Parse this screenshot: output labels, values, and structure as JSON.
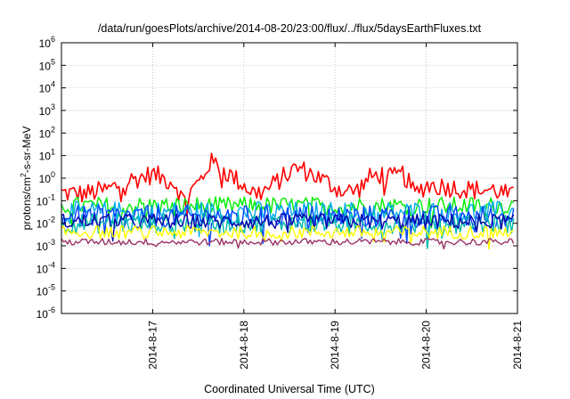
{
  "chart_data": {
    "type": "line",
    "title": "/data/run/goesPlots/archive/2014-08-20/23:00/flux/../flux/5daysEarthFluxes.txt",
    "xlabel": "Coordinated Universal Time (UTC)",
    "ylabel": "protons/cm2-s-sr-MeV",
    "ylabel_parts": {
      "before": "protons/cm",
      "sup": "2",
      "after": "-s-sr-MeV"
    },
    "y_scale": "log",
    "ylim": [
      1e-06,
      1000000.0
    ],
    "y_ticks": [
      {
        "value": 1e-06,
        "base": "10",
        "exp": "-6"
      },
      {
        "value": 1e-05,
        "base": "10",
        "exp": "-5"
      },
      {
        "value": 0.0001,
        "base": "10",
        "exp": "-4"
      },
      {
        "value": 0.001,
        "base": "10",
        "exp": "-3"
      },
      {
        "value": 0.01,
        "base": "10",
        "exp": "-2"
      },
      {
        "value": 0.1,
        "base": "10",
        "exp": "-1"
      },
      {
        "value": 1.0,
        "base": "10",
        "exp": "0"
      },
      {
        "value": 10.0,
        "base": "10",
        "exp": "1"
      },
      {
        "value": 100.0,
        "base": "10",
        "exp": "2"
      },
      {
        "value": 1000.0,
        "base": "10",
        "exp": "3"
      },
      {
        "value": 10000.0,
        "base": "10",
        "exp": "4"
      },
      {
        "value": 100000.0,
        "base": "10",
        "exp": "5"
      },
      {
        "value": 1000000.0,
        "base": "10",
        "exp": "6"
      }
    ],
    "xlim": [
      "2014-08-16",
      "2014-08-21"
    ],
    "x_ticks": [
      "2014-8-17",
      "2014-8-18",
      "2014-8-19",
      "2014-8-20",
      "2014-8-21"
    ],
    "grid": true,
    "series": [
      {
        "color": "#ff0000",
        "noise": 0.45,
        "points": [
          [
            "2014-08-16 00:00",
            0.22
          ],
          [
            "2014-08-16 06:00",
            0.2
          ],
          [
            "2014-08-16 12:00",
            0.3
          ],
          [
            "2014-08-16 18:00",
            0.8
          ],
          [
            "2014-08-17 00:00",
            1.5
          ],
          [
            "2014-08-17 06:00",
            0.6
          ],
          [
            "2014-08-17 08:00",
            0.1
          ],
          [
            "2014-08-17 10:00",
            0.25
          ],
          [
            "2014-08-17 13:00",
            1.0
          ],
          [
            "2014-08-17 15:00",
            5.0
          ],
          [
            "2014-08-17 17:00",
            4.0
          ],
          [
            "2014-08-17 20:00",
            1.5
          ],
          [
            "2014-08-18 00:00",
            0.5
          ],
          [
            "2014-08-18 03:00",
            0.2
          ],
          [
            "2014-08-18 06:00",
            0.3
          ],
          [
            "2014-08-18 10:00",
            1.0
          ],
          [
            "2014-08-18 14:00",
            3.0
          ],
          [
            "2014-08-18 18:00",
            1.5
          ],
          [
            "2014-08-19 00:00",
            0.4
          ],
          [
            "2014-08-19 03:00",
            0.25
          ],
          [
            "2014-08-19 06:00",
            0.3
          ],
          [
            "2014-08-19 09:00",
            1.0
          ],
          [
            "2014-08-19 12:00",
            1.5
          ],
          [
            "2014-08-19 15:00",
            1.0
          ],
          [
            "2014-08-19 18:00",
            1.5
          ],
          [
            "2014-08-19 21:00",
            0.2
          ],
          [
            "2014-08-20 00:00",
            0.5
          ],
          [
            "2014-08-20 06:00",
            0.4
          ],
          [
            "2014-08-20 12:00",
            0.3
          ],
          [
            "2014-08-20 18:00",
            0.3
          ],
          [
            "2014-08-20 23:00",
            0.15
          ]
        ]
      },
      {
        "color": "#00ee00",
        "noise": 0.4,
        "points": [
          [
            "2014-08-16 00:00",
            0.06
          ],
          [
            "2014-08-20 23:00",
            0.06
          ]
        ]
      },
      {
        "color": "#00aaee",
        "noise": 0.5,
        "points": [
          [
            "2014-08-16 00:00",
            0.03
          ],
          [
            "2014-08-20 23:00",
            0.03
          ]
        ]
      },
      {
        "color": "#0044ff",
        "noise": 0.5,
        "points": [
          [
            "2014-08-16 00:00",
            0.02
          ],
          [
            "2014-08-20 23:00",
            0.02
          ]
        ]
      },
      {
        "color": "#00bbaa",
        "noise": 0.45,
        "points": [
          [
            "2014-08-16 00:00",
            0.01
          ],
          [
            "2014-08-20 23:00",
            0.01
          ]
        ]
      },
      {
        "color": "#0000aa",
        "noise": 0.35,
        "points": [
          [
            "2014-08-16 00:00",
            0.012
          ],
          [
            "2014-08-20 23:00",
            0.012
          ]
        ]
      },
      {
        "color": "#ffff00",
        "noise": 0.3,
        "points": [
          [
            "2014-08-16 00:00",
            0.004
          ],
          [
            "2014-08-20 23:00",
            0.004
          ]
        ]
      },
      {
        "color": "#993366",
        "noise": 0.15,
        "points": [
          [
            "2014-08-16 00:00",
            0.0015
          ],
          [
            "2014-08-20 23:00",
            0.0015
          ]
        ]
      }
    ]
  }
}
